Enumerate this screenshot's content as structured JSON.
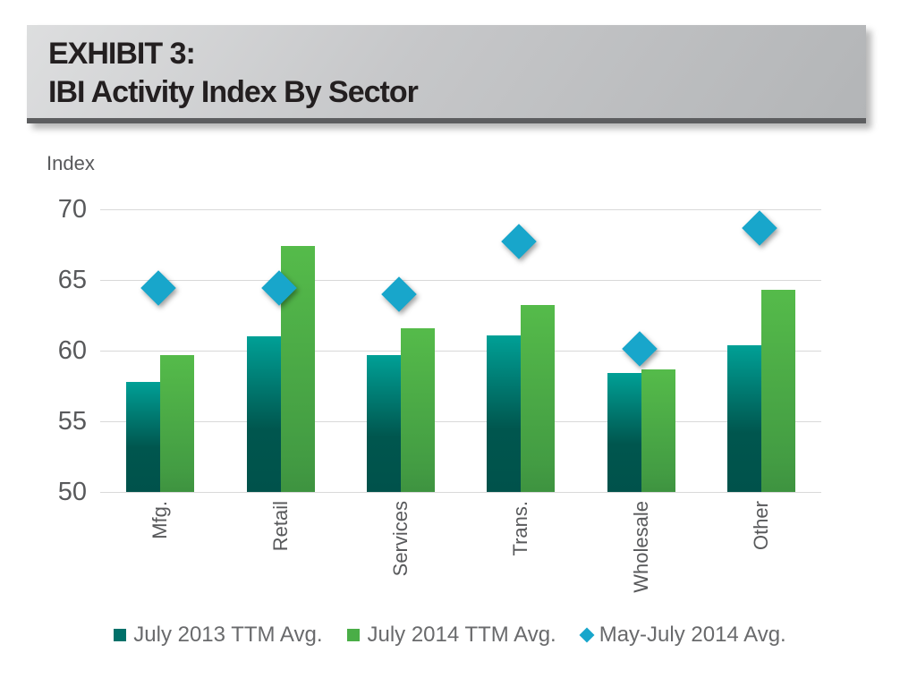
{
  "header": {
    "line1": "EXHIBIT 3:",
    "line2": "IBI Activity Index By Sector"
  },
  "chart_data": {
    "type": "bar",
    "title": "IBI Activity Index By Sector",
    "ylabel": "Index",
    "xlabel": "",
    "ylim": [
      50,
      70
    ],
    "yticks": [
      70,
      65,
      60,
      55,
      50
    ],
    "grid": true,
    "legend_position": "bottom",
    "categories": [
      "Mfg.",
      "Retail",
      "Services",
      "Trans.",
      "Wholesale",
      "Other"
    ],
    "series": [
      {
        "name": "July 2013 TTM Avg.",
        "type": "bar",
        "marker": "square",
        "color_top": "#00a096",
        "color_bottom": "#00524b",
        "legend_color": "#00716a",
        "values": [
          57.8,
          61.0,
          59.7,
          61.1,
          58.4,
          60.4
        ]
      },
      {
        "name": "July 2014 TTM Avg.",
        "type": "bar",
        "marker": "square",
        "color_top": "#55bb4a",
        "color_bottom": "#3e9340",
        "legend_color": "#4aae47",
        "values": [
          59.7,
          67.4,
          61.6,
          63.2,
          58.7,
          64.3
        ]
      },
      {
        "name": "May-July 2014 Avg.",
        "type": "scatter",
        "marker": "diamond",
        "color": "#18a6cb",
        "legend_color": "#18a6cb",
        "values": [
          64.4,
          64.4,
          64.0,
          67.7,
          60.1,
          68.7
        ]
      }
    ]
  },
  "colors": {
    "grid": "#d9d9d9",
    "tick_text": "#58595b",
    "legend_text": "#696a6c",
    "header_border": "#5d5e60"
  }
}
